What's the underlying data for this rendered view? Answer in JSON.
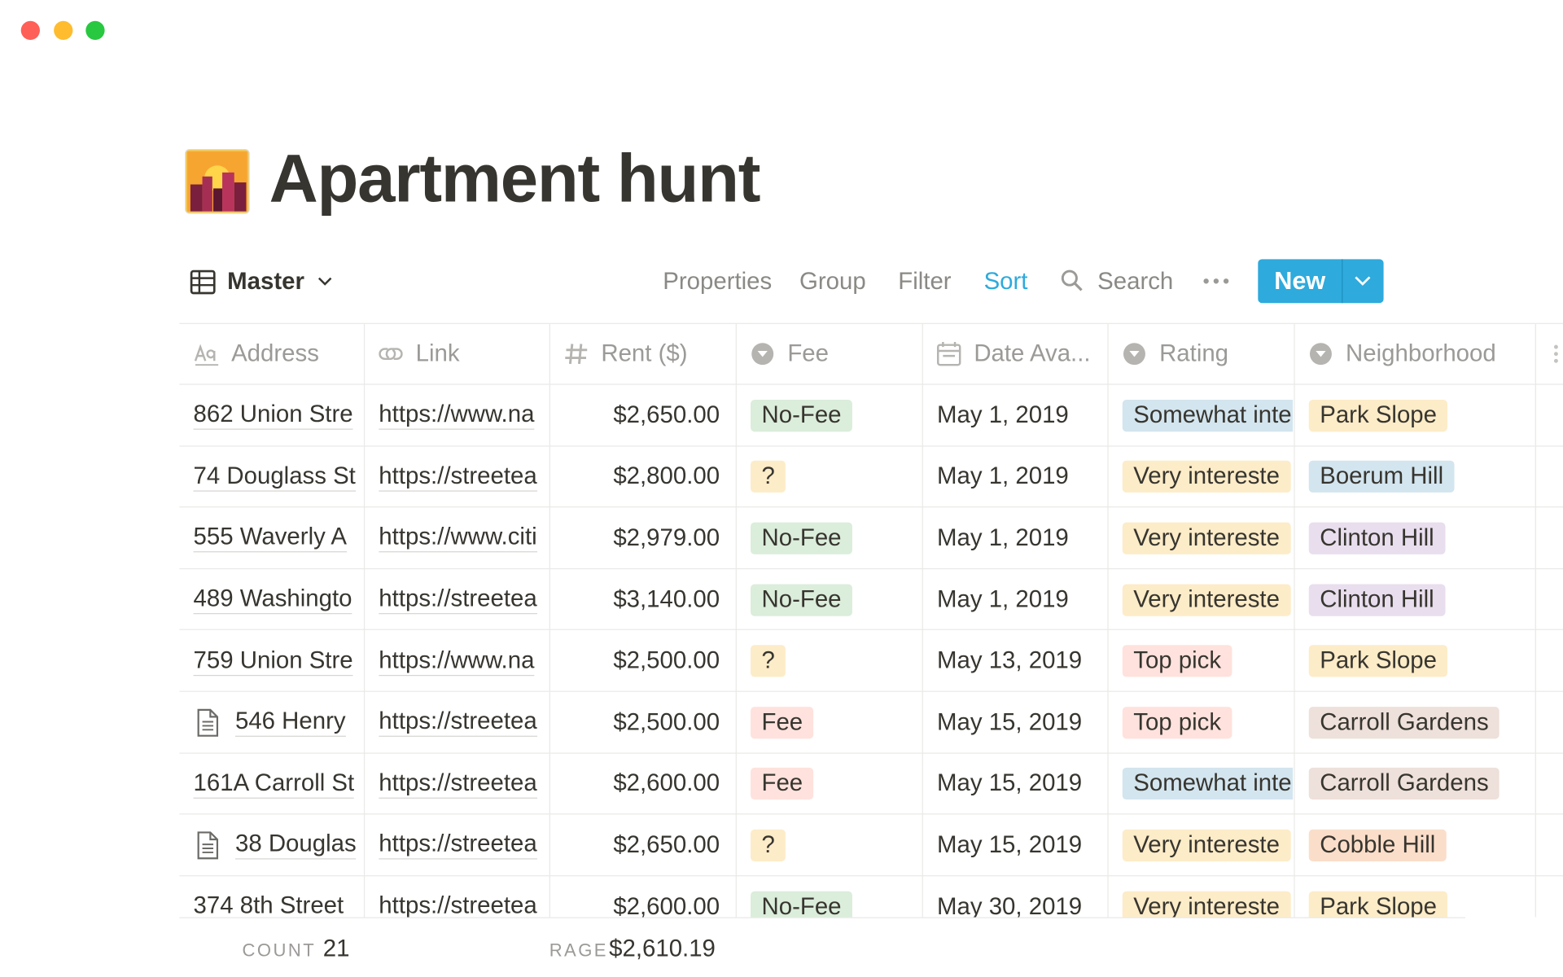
{
  "header": {
    "title": "Apartment hunt"
  },
  "toolbar": {
    "view": "Master",
    "properties": "Properties",
    "group": "Group",
    "filter": "Filter",
    "sort": "Sort",
    "search": "Search",
    "new": "New"
  },
  "table": {
    "columns": [
      {
        "name": "Address"
      },
      {
        "name": "Link"
      },
      {
        "name": "Rent ($)"
      },
      {
        "name": "Fee"
      },
      {
        "name": "Date Ava..."
      },
      {
        "name": "Rating"
      },
      {
        "name": "Neighborhood"
      }
    ],
    "rows": [
      {
        "address": "862 Union Stre",
        "page_icon": false,
        "link": "https://www.na",
        "rent": "$2,650.00",
        "fee": {
          "text": "No-Fee",
          "color": "#dbeddb"
        },
        "date": "May 1, 2019",
        "rating": {
          "text": "Somewhat inte",
          "color": "#d3e5ef"
        },
        "neighborhood": {
          "text": "Park Slope",
          "color": "#fdecc8"
        }
      },
      {
        "address": "74 Douglass St",
        "page_icon": false,
        "link": "https://streetea",
        "rent": "$2,800.00",
        "fee": {
          "text": "?",
          "color": "#fdecc8"
        },
        "date": "May 1, 2019",
        "rating": {
          "text": "Very intereste",
          "color": "#fdecc8"
        },
        "neighborhood": {
          "text": "Boerum Hill",
          "color": "#d3e5ef"
        }
      },
      {
        "address": "555 Waverly A",
        "page_icon": false,
        "link": "https://www.citi",
        "rent": "$2,979.00",
        "fee": {
          "text": "No-Fee",
          "color": "#dbeddb"
        },
        "date": "May 1, 2019",
        "rating": {
          "text": "Very intereste",
          "color": "#fdecc8"
        },
        "neighborhood": {
          "text": "Clinton Hill",
          "color": "#e8deee"
        }
      },
      {
        "address": "489 Washingto",
        "page_icon": false,
        "link": "https://streetea",
        "rent": "$3,140.00",
        "fee": {
          "text": "No-Fee",
          "color": "#dbeddb"
        },
        "date": "May 1, 2019",
        "rating": {
          "text": "Very intereste",
          "color": "#fdecc8"
        },
        "neighborhood": {
          "text": "Clinton Hill",
          "color": "#e8deee"
        }
      },
      {
        "address": "759 Union Stre",
        "page_icon": false,
        "link": "https://www.na",
        "rent": "$2,500.00",
        "fee": {
          "text": "?",
          "color": "#fdecc8"
        },
        "date": "May 13, 2019",
        "rating": {
          "text": "Top pick",
          "color": "#ffe2dd"
        },
        "neighborhood": {
          "text": "Park Slope",
          "color": "#fdecc8"
        }
      },
      {
        "address": "546 Henry",
        "page_icon": true,
        "link": "https://streetea",
        "rent": "$2,500.00",
        "fee": {
          "text": "Fee",
          "color": "#ffe2dd"
        },
        "date": "May 15, 2019",
        "rating": {
          "text": "Top pick",
          "color": "#ffe2dd"
        },
        "neighborhood": {
          "text": "Carroll Gardens",
          "color": "#eee0da"
        }
      },
      {
        "address": "161A Carroll St",
        "page_icon": false,
        "link": "https://streetea",
        "rent": "$2,600.00",
        "fee": {
          "text": "Fee",
          "color": "#ffe2dd"
        },
        "date": "May 15, 2019",
        "rating": {
          "text": "Somewhat inte",
          "color": "#d3e5ef"
        },
        "neighborhood": {
          "text": "Carroll Gardens",
          "color": "#eee0da"
        }
      },
      {
        "address": "38 Douglas",
        "page_icon": true,
        "link": "https://streetea",
        "rent": "$2,650.00",
        "fee": {
          "text": "?",
          "color": "#fdecc8"
        },
        "date": "May 15, 2019",
        "rating": {
          "text": "Very intereste",
          "color": "#fdecc8"
        },
        "neighborhood": {
          "text": "Cobble Hill",
          "color": "#fadec9"
        }
      },
      {
        "address": "374 8th Street",
        "page_icon": false,
        "link": "https://streetea",
        "rent": "$2,600.00",
        "fee": {
          "text": "No-Fee",
          "color": "#dbeddb"
        },
        "date": "May 30, 2019",
        "rating": {
          "text": "Very intereste",
          "color": "#fdecc8"
        },
        "neighborhood": {
          "text": "Park Slope",
          "color": "#fdecc8"
        }
      }
    ],
    "footer": {
      "count_label": "COUNT",
      "count": "21",
      "average_label": "RAGE",
      "average": "$2,610.19"
    }
  }
}
